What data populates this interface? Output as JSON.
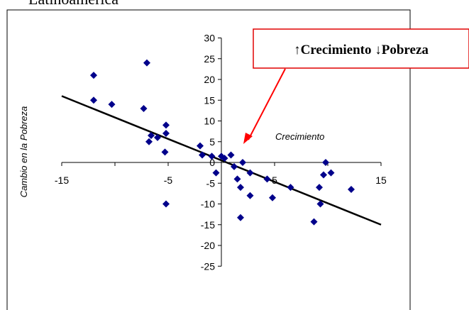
{
  "top_text": "Latinoamérica",
  "callout": {
    "text": "↑Crecimiento ↓Pobreza",
    "border_color": "#e00000",
    "arrow_color": "#ff0000"
  },
  "chart_data": {
    "type": "scatter",
    "title": "",
    "xlabel": "Crecimiento",
    "ylabel": "Cambio en la Pobreza",
    "xlim": [
      -15,
      15
    ],
    "ylim": [
      -25,
      30
    ],
    "xticks": [
      -15,
      -5,
      5,
      15
    ],
    "yticks": [
      30,
      25,
      20,
      15,
      10,
      5,
      0,
      -5,
      -10,
      -15,
      -20,
      -25
    ],
    "grid": false,
    "marker_color": "#00008b",
    "points": [
      {
        "x": -12.0,
        "y": 21.0
      },
      {
        "x": -12.0,
        "y": 15.0
      },
      {
        "x": -10.3,
        "y": 14.0
      },
      {
        "x": -7.0,
        "y": 24.0
      },
      {
        "x": -7.3,
        "y": 13.0
      },
      {
        "x": -6.6,
        "y": 6.5
      },
      {
        "x": -6.8,
        "y": 5.0
      },
      {
        "x": -6.0,
        "y": 6.0
      },
      {
        "x": -5.2,
        "y": 9.0
      },
      {
        "x": -5.2,
        "y": 7.0
      },
      {
        "x": -5.3,
        "y": 2.5
      },
      {
        "x": -5.2,
        "y": -10.0
      },
      {
        "x": -2.0,
        "y": 4.0
      },
      {
        "x": -1.8,
        "y": 1.8
      },
      {
        "x": -0.9,
        "y": 1.5
      },
      {
        "x": -0.5,
        "y": -2.5
      },
      {
        "x": 0.0,
        "y": 1.5
      },
      {
        "x": 0.3,
        "y": 1.0
      },
      {
        "x": 0.9,
        "y": 1.8
      },
      {
        "x": 1.2,
        "y": -1.0
      },
      {
        "x": 1.5,
        "y": -4.0
      },
      {
        "x": 1.8,
        "y": -6.0
      },
      {
        "x": 1.8,
        "y": -13.3
      },
      {
        "x": 2.0,
        "y": 0.0
      },
      {
        "x": 2.7,
        "y": -2.5
      },
      {
        "x": 2.7,
        "y": -8.0
      },
      {
        "x": 4.3,
        "y": -4.0
      },
      {
        "x": 4.8,
        "y": -8.5
      },
      {
        "x": 6.5,
        "y": -6.0
      },
      {
        "x": 8.7,
        "y": -14.3
      },
      {
        "x": 9.2,
        "y": -6.0
      },
      {
        "x": 9.3,
        "y": -10.0
      },
      {
        "x": 9.6,
        "y": -3.0
      },
      {
        "x": 9.8,
        "y": 0.0
      },
      {
        "x": 10.3,
        "y": -2.5
      },
      {
        "x": 12.2,
        "y": -6.5
      }
    ],
    "trendline": {
      "x": [
        -15,
        15
      ],
      "y": [
        16,
        -15
      ]
    }
  }
}
